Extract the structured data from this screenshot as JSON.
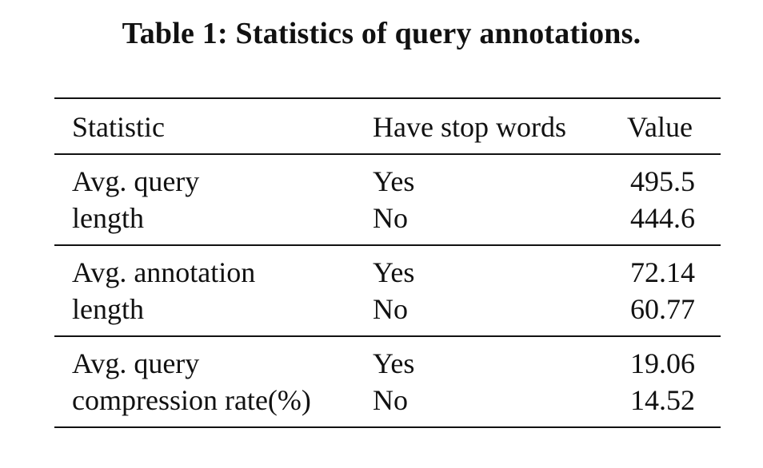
{
  "caption": "Table 1: Statistics of query annotations.",
  "table": {
    "headers": [
      "Statistic",
      "Have stop words",
      "Value"
    ],
    "groups": [
      {
        "statistic_line1": "Avg. query",
        "statistic_line2": "length",
        "rows": [
          {
            "stop": "Yes",
            "value": "495.5"
          },
          {
            "stop": "No",
            "value": "444.6"
          }
        ]
      },
      {
        "statistic_line1": "Avg. annotation",
        "statistic_line2": "length",
        "rows": [
          {
            "stop": "Yes",
            "value": "72.14"
          },
          {
            "stop": "No",
            "value": "60.77"
          }
        ]
      },
      {
        "statistic_line1": "Avg. query",
        "statistic_line2": "compression rate(%)",
        "rows": [
          {
            "stop": "Yes",
            "value": "19.06"
          },
          {
            "stop": "No",
            "value": "14.52"
          }
        ]
      }
    ]
  }
}
